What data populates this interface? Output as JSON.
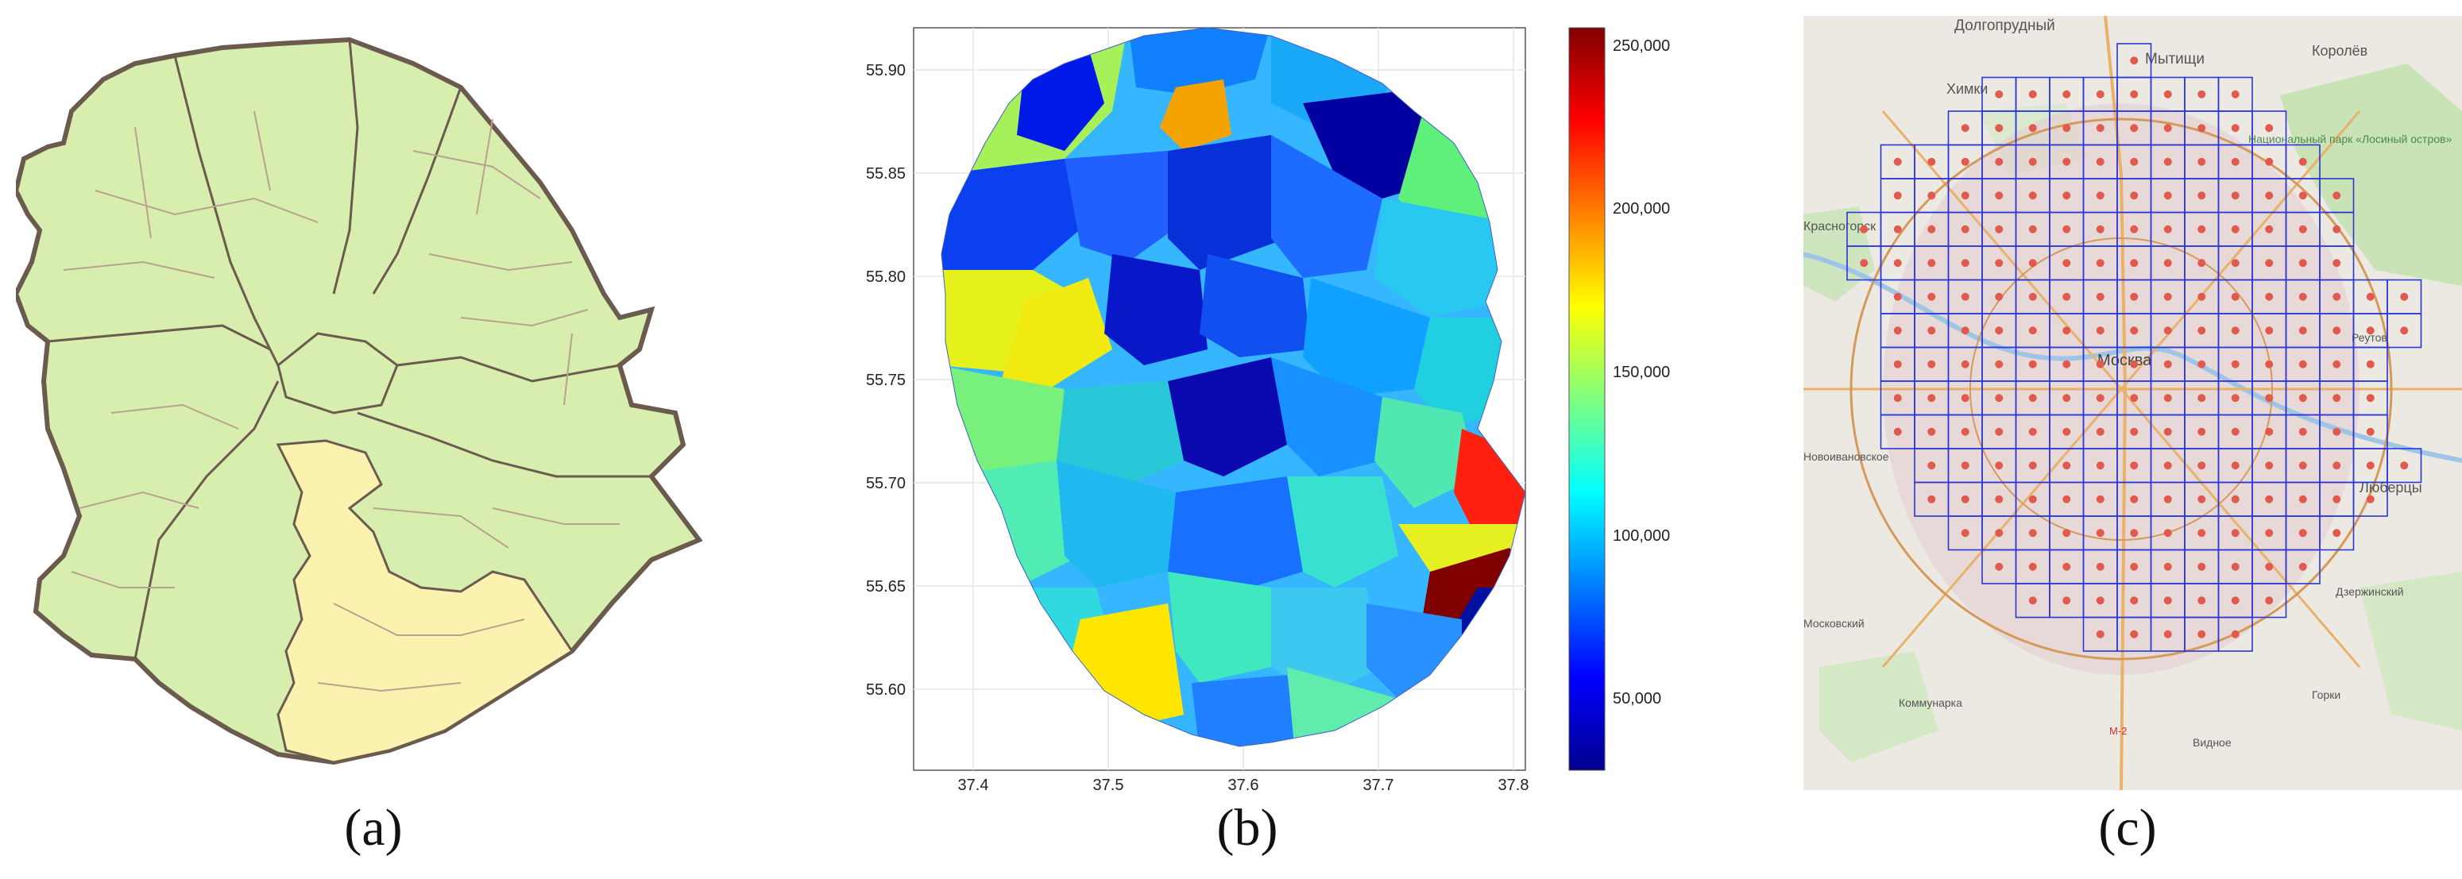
{
  "captions": {
    "a": "(a)",
    "b": "(b)",
    "c": "(c)"
  },
  "panel_b": {
    "y_ticks": [
      "55.90",
      "55.85",
      "55.80",
      "55.75",
      "55.70",
      "55.65",
      "55.60"
    ],
    "x_ticks": [
      "37.4",
      "37.5",
      "37.6",
      "37.7",
      "37.8"
    ],
    "colorbar_ticks": [
      "250,000",
      "200,000",
      "150,000",
      "100,000",
      "50,000"
    ],
    "colorbar_range": [
      28000,
      255000
    ],
    "colormap": "jet"
  },
  "panel_c": {
    "place_labels": [
      "Долгопрудный",
      "Мытищи",
      "Королёв",
      "Химки",
      "Национальный парк «Лосиный остров»",
      "Красногорск",
      "Москва",
      "Новоивановское",
      "Люберцы",
      "Московский",
      "Коммунарка",
      "Видное",
      "Дзержинский",
      "Реутов",
      "М-2",
      "Горки"
    ],
    "grid_color": "#2a36d6",
    "dot_color": "#e05a4e"
  },
  "colors": {
    "admin_fill": "#d8eeae",
    "highlight_fill": "#fbf2b0",
    "border": "#6b5a4e"
  }
}
